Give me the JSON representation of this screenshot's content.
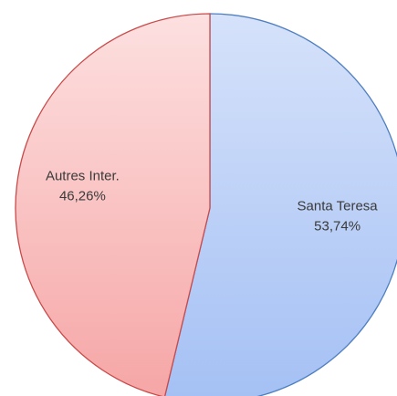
{
  "chart_data": {
    "type": "pie",
    "slices": [
      {
        "name": "Santa Teresa",
        "value": 53.74,
        "value_label": "53,74%",
        "fill_top": "#d6e2fa",
        "fill_bottom": "#a4c0f4",
        "stroke": "#4f7fc0"
      },
      {
        "name": "Autres Inter.",
        "value": 46.26,
        "value_label": "46,26%",
        "fill_top": "#fde0e0",
        "fill_bottom": "#f6a6a6",
        "stroke": "#c94a4a"
      }
    ],
    "start_angle": "12 o'clock",
    "direction": "clockwise",
    "labels_inside": true
  }
}
